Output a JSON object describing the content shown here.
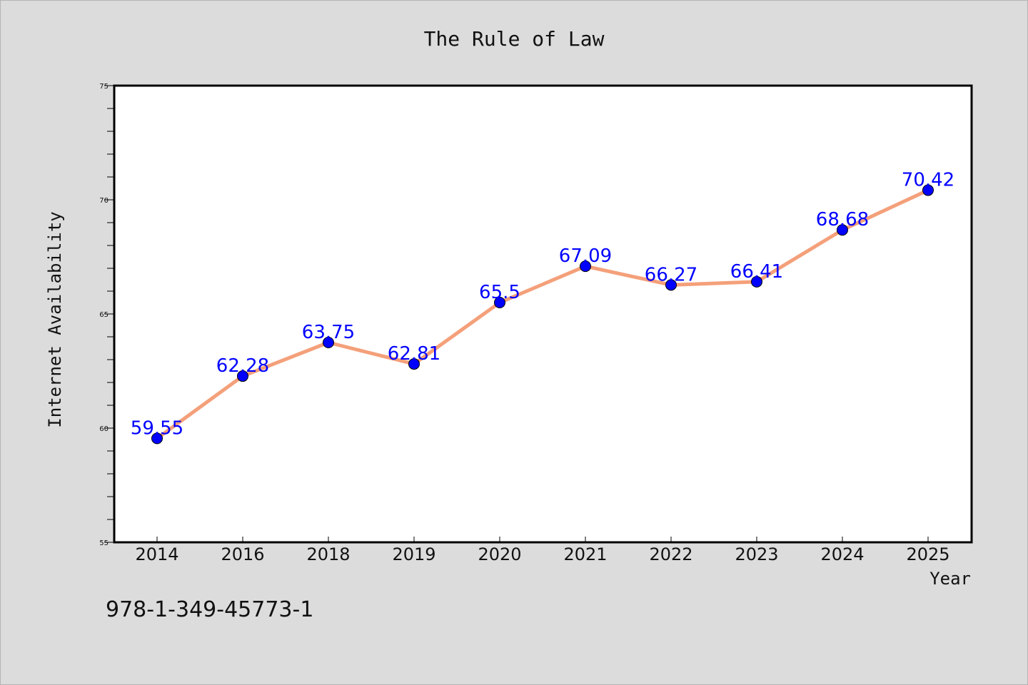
{
  "chart_data": {
    "type": "line",
    "title": "The Rule of Law",
    "xlabel": "Year",
    "ylabel": "Internet Availability",
    "categories": [
      "2014",
      "2016",
      "2018",
      "2019",
      "2020",
      "2021",
      "2022",
      "2023",
      "2024",
      "2025"
    ],
    "series": [
      {
        "values": [
          59.55,
          62.28,
          63.75,
          62.81,
          65.5,
          67.09,
          66.27,
          66.41,
          68.68,
          70.42
        ],
        "data_labels": [
          "59.55",
          "62.28",
          "63.75",
          "62.81",
          "65.5",
          "67.09",
          "66.27",
          "66.41",
          "68.68",
          "70.42"
        ]
      }
    ],
    "ylim": [
      55,
      75
    ],
    "yticks": [
      "55",
      "60",
      "65",
      "70",
      "75"
    ],
    "grid": false,
    "legend": "none",
    "line_color": "#f4a07a",
    "marker_color": "#0000ff"
  },
  "footer": {
    "isbn": "978-1-349-45773-1"
  }
}
